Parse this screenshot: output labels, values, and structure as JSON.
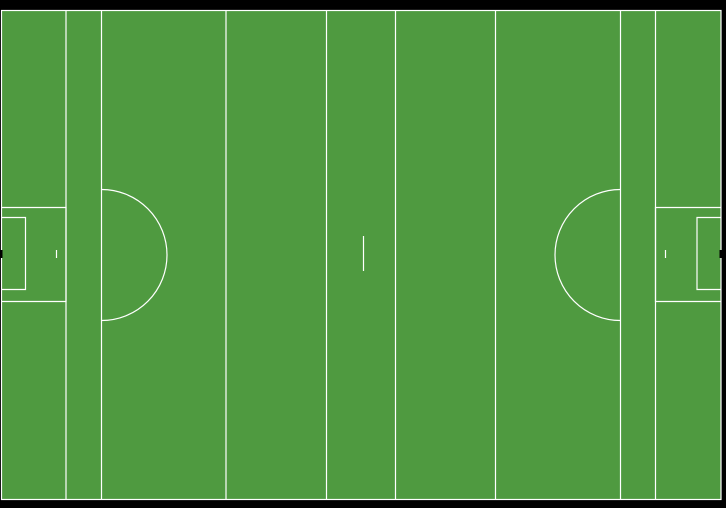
{
  "pitch": {
    "surface_color": "#4f9a40",
    "line_color": "#ffffff",
    "background_color": "#000000",
    "goal_color": "#000000",
    "sport": "gaelic-football-pitch",
    "markings": [
      "sideline",
      "endline",
      "13m-line",
      "20m-line",
      "45m-line",
      "65m-line",
      "halfway-mark",
      "small-rectangle",
      "large-rectangle",
      "arc",
      "penalty-mark",
      "goal"
    ]
  }
}
